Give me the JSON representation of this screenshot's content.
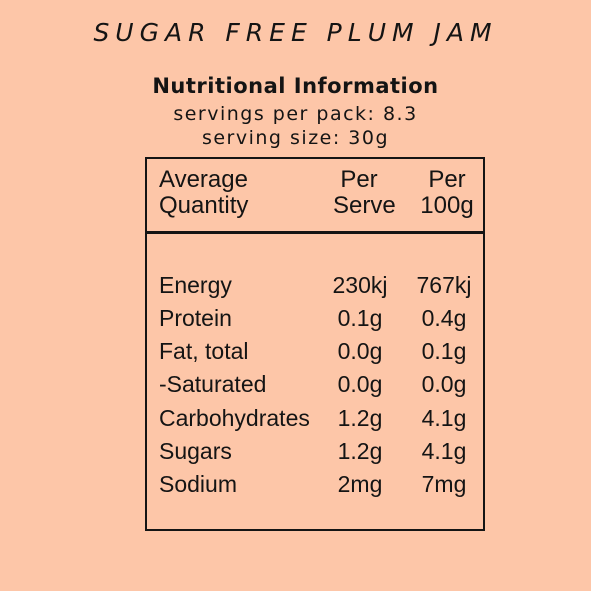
{
  "product_title": "SUGAR FREE PLUM JAM",
  "heading": "Nutritional Information",
  "servings_per_pack": "servings per pack: 8.3",
  "serving_size": "serving size: 30g",
  "table": {
    "header": {
      "quantity_line1": "Average",
      "quantity_line2": "Quantity",
      "serve_line1": "Per",
      "serve_line2": "Serve",
      "per100_line1": "Per",
      "per100_line2": "100g"
    },
    "rows": [
      {
        "name": "Energy",
        "per_serve": "230kj",
        "per_100g": "767kj"
      },
      {
        "name": "Protein",
        "per_serve": "0.1g",
        "per_100g": "0.4g"
      },
      {
        "name": "Fat, total",
        "per_serve": "0.0g",
        "per_100g": "0.1g"
      },
      {
        "name": "-Saturated",
        "per_serve": "0.0g",
        "per_100g": "0.0g"
      },
      {
        "name": "Carbohydrates",
        "per_serve": "1.2g",
        "per_100g": "4.1g"
      },
      {
        "name": "Sugars",
        "per_serve": "1.2g",
        "per_100g": "4.1g"
      },
      {
        "name": "Sodium",
        "per_serve": "2mg",
        "per_100g": "7mg"
      }
    ]
  },
  "colors": {
    "background": "#fdc6a8",
    "text": "#141414"
  }
}
